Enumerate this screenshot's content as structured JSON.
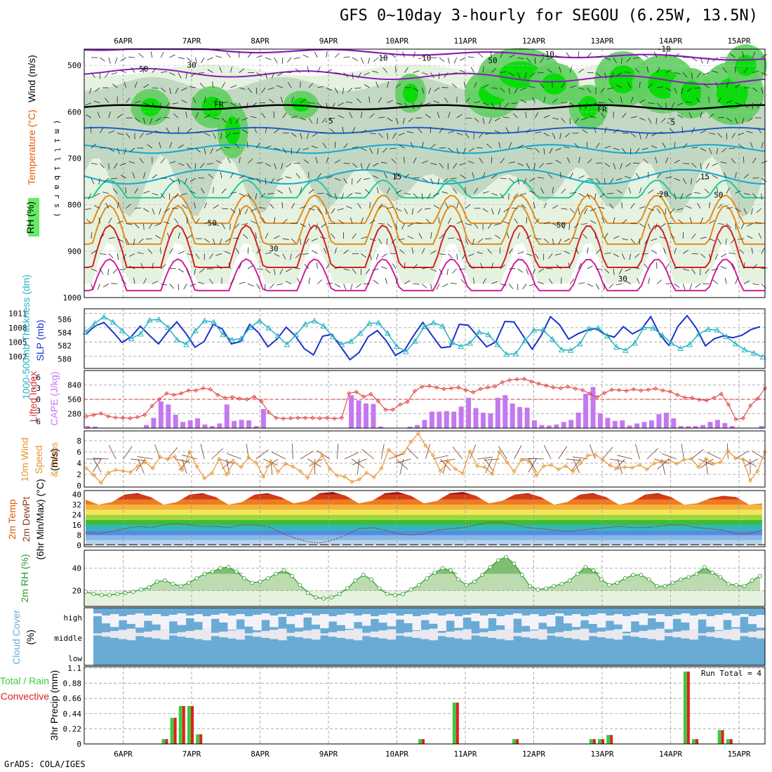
{
  "title": "GFS 0~10day 3-hourly for SEGOU (6.25W, 13.5N)",
  "credit": "GrADS: COLA/IGES",
  "colors": {
    "rh_green": "#00dd00",
    "rh_light": "#e6f2e0",
    "rh_mid": "#bcd4bc",
    "isotherm_cold": "#8c1cbc",
    "isotherm_freeze": "#000000",
    "isotherm_cool": "#1d5fcc",
    "isotherm_mild": "#14a8d4",
    "isotherm_warm": "#1ec8a0",
    "isotherm_hot": "#e08a1e",
    "isotherm_veryhot": "#d42020",
    "slp": "#1a33cc",
    "thickness": "#26b2c4",
    "lifted": "#e03030",
    "cape": "#c478f0",
    "wind10": "#e8932a",
    "rh2m": "#2e9a2e",
    "cloud": "#6aabd6",
    "rain": "#3ec93e",
    "convective": "#e02020"
  },
  "chart_data": [
    {
      "type": "heatmap",
      "panel": "upper-air cross-section",
      "ylabel_parts": [
        "RH (%)",
        "Temperature (°C)",
        "Wind (m/s)"
      ],
      "ylabel_units": "( m i l l i b a r s )",
      "y_ticks": [
        "500",
        "600",
        "700",
        "800",
        "900",
        "1000"
      ],
      "x_ticks_top": [
        "6APR",
        "7APR",
        "8APR",
        "9APR",
        "10APR",
        "11APR",
        "12APR",
        "13APR",
        "14APR",
        "15APR"
      ],
      "isotherm_labels": [
        "-10",
        "FR",
        "FR",
        "-5",
        "-5",
        "-10",
        "-10",
        "15",
        "15",
        "20",
        "30",
        "30"
      ],
      "rh_contour_labels": [
        "50",
        "30",
        "10",
        "50",
        "50",
        "50",
        "50"
      ],
      "isotherms_levels": [
        -10,
        0,
        -5,
        10,
        15,
        20,
        25,
        30,
        35
      ]
    },
    {
      "type": "line",
      "panel": "sea level pressure and thickness",
      "ylabel_left": "1000-500mb Thickness (dm)",
      "ylabel_right": "SLP (mb)",
      "y_ticks_left": [
        "586",
        "584",
        "582",
        "580"
      ],
      "y_ticks_right": [
        "1011",
        "1008",
        "1005",
        "1002"
      ],
      "series": [
        {
          "name": "SLP (mb)",
          "values": [
            1006.6,
            1008.3,
            1009.1,
            1007.1,
            1004.9,
            1006.1,
            1008.3,
            1006.4,
            1004.6,
            1007.1,
            1009.2,
            1006.8,
            1003.9,
            1005.1,
            1008.7,
            1007.7,
            1004.6,
            1005.1,
            1008.7,
            1006.9,
            1004.0,
            1005.6,
            1008.1,
            1006.3,
            1003.6,
            1002.3,
            1006.2,
            1006.6,
            1004.0,
            1001.3,
            1002.8,
            1006.1,
            1007.4,
            1005.2,
            1002.2,
            1003.3,
            1006.4,
            1009.1,
            1006.4,
            1003.8,
            1004.0,
            1008.7,
            1008.5,
            1006.2,
            1004.0,
            1005.0,
            1009.3,
            1009.2,
            1006.3,
            1003.5,
            1006.4,
            1010.3,
            1008.6,
            1005.6,
            1006.7,
            1007.5,
            1007.8,
            1006.6,
            1006.0,
            1008.2,
            1006.7,
            1007.7,
            1010.3,
            1006.6,
            1004.3,
            1008.3,
            1010.5,
            1007.9,
            1004.2,
            1005.7,
            1006.3,
            1005.9,
            1006.4,
            1007.6,
            1008.2
          ]
        },
        {
          "name": "1000-500mb Thickness (dm)",
          "values": [
            584.1,
            585.4,
            586.4,
            585.6,
            584.3,
            583.1,
            583.8,
            585.9,
            586.0,
            584.8,
            582.9,
            582.2,
            584.3,
            585.8,
            585.6,
            583.7,
            582.9,
            583.1,
            584.8,
            585.8,
            584.7,
            583.5,
            582.2,
            583.7,
            585.3,
            585.8,
            585.0,
            583.4,
            582.2,
            582.7,
            583.9,
            585.4,
            585.5,
            583.9,
            581.9,
            581.1,
            582.7,
            584.9,
            585.5,
            585.0,
            582.5,
            581.9,
            582.4,
            584.1,
            583.7,
            582.2,
            580.7,
            580.8,
            582.8,
            584.4,
            584.4,
            583.0,
            581.4,
            581.3,
            582.3,
            584.6,
            584.7,
            583.5,
            581.8,
            581.3,
            582.4,
            584.8,
            584.7,
            583.6,
            582.4,
            581.6,
            582.2,
            583.8,
            584.5,
            584.4,
            583.4,
            582.3,
            581.4,
            580.9,
            580.3
          ]
        }
      ]
    },
    {
      "type": "bar",
      "panel": "stability",
      "ylabel_left": "Lifted Index",
      "ylabel_right": "CAPE (J/kg)",
      "y_ticks_left": [
        "-6",
        "-3",
        "0",
        "3",
        "6"
      ],
      "y_ticks_right": [
        "840",
        "560",
        "280"
      ],
      "series": [
        {
          "name": "CAPE (J/kg)",
          "values": [
            40,
            30,
            0,
            0,
            0,
            0,
            0,
            0,
            60,
            200,
            520,
            460,
            260,
            120,
            150,
            190,
            70,
            40,
            90,
            460,
            140,
            160,
            150,
            40,
            370,
            0,
            0,
            0,
            0,
            0,
            0,
            0,
            0,
            0,
            0,
            0,
            640,
            540,
            480,
            470,
            30,
            0,
            0,
            0,
            30,
            60,
            160,
            320,
            320,
            330,
            320,
            420,
            590,
            390,
            300,
            290,
            590,
            640,
            480,
            410,
            400,
            150,
            60,
            50,
            70,
            120,
            160,
            300,
            670,
            800,
            290,
            200,
            140,
            150,
            50,
            90,
            120,
            150,
            270,
            300,
            190,
            40,
            35,
            40,
            60,
            120,
            160,
            100,
            40,
            0,
            0,
            0,
            40
          ]
        },
        {
          "name": "Lifted Index",
          "values": [
            4.6,
            4.2,
            3.8,
            4.6,
            4.9,
            5.0,
            5.1,
            4.8,
            4.2,
            1.8,
            0.0,
            -1.6,
            -1.2,
            -1.6,
            -2.4,
            -2.4,
            -3.0,
            -2.7,
            -1.2,
            -0.4,
            -0.6,
            -0.2,
            0.0,
            -0.7,
            0.6,
            3.5,
            5.0,
            5.2,
            5.1,
            5.0,
            5.0,
            5.0,
            5.1,
            5.0,
            5.2,
            5.0,
            -1.6,
            -2.0,
            -0.7,
            -1.4,
            0.5,
            2.8,
            2.8,
            1.4,
            0.7,
            -2.2,
            -3.4,
            -3.6,
            -3.2,
            -2.8,
            -3.0,
            -3.2,
            -2.5,
            -1.9,
            -2.8,
            -3.2,
            -3.5,
            -4.6,
            -5.2,
            -5.4,
            -5.5,
            -4.8,
            -4.2,
            -3.7,
            -3.2,
            -3.0,
            -3.4,
            -2.9,
            -2.5,
            -1.5,
            -0.6,
            -1.7,
            -2.6,
            -2.5,
            -2.3,
            -2.7,
            -2.4,
            -2.6,
            -2.9,
            -2.4,
            -2.1,
            -1.2,
            -0.5,
            -0.4,
            0.1,
            0.3,
            -0.4,
            -1.5,
            1.4,
            5.4,
            5.1,
            1.7,
            -0.2,
            -3.0
          ]
        }
      ]
    },
    {
      "type": "line",
      "panel": "10m wind",
      "ylabel": "10m Wind Speed & Barbs (m/s)",
      "y_ticks": [
        "8",
        "6",
        "4",
        "2",
        "0"
      ],
      "series": [
        {
          "name": "10m Wind Speed (m/s)",
          "values": [
            3.1,
            1.9,
            0.5,
            2.3,
            2.8,
            2.6,
            2.4,
            3.5,
            4.2,
            3.1,
            5.1,
            4.7,
            5.2,
            2.8,
            6.0,
            3.4,
            1.3,
            2.2,
            4.8,
            2.0,
            4.2,
            3.3,
            5.0,
            4.1,
            1.6,
            4.2,
            2.5,
            3.9,
            3.4,
            2.6,
            1.4,
            3.9,
            5.4,
            3.0,
            1.8,
            1.6,
            0.7,
            1.1,
            2.3,
            1.5,
            3.1,
            6.4,
            5.3,
            5.8,
            7.8,
            9.3,
            7.1,
            5.4,
            2.6,
            4.3,
            3.0,
            2.2,
            6.1,
            3.5,
            3.3,
            2.1,
            6.0,
            4.2,
            2.5,
            4.6,
            4.4,
            1.8,
            3.5,
            3.7,
            2.9,
            3.5,
            2.5,
            4.0,
            5.4,
            5.5,
            4.6,
            3.6,
            3.1,
            3.3,
            3.2,
            3.7,
            2.9,
            4.0,
            4.3,
            4.6,
            3.9,
            4.6,
            4.8,
            3.3,
            4.8,
            3.9,
            4.2,
            6.2,
            4.9,
            4.7,
            0.9,
            2.6,
            6.0
          ]
        }
      ]
    },
    {
      "type": "area",
      "panel": "2m temperature",
      "ylabel_parts": [
        "2m Temp",
        "2m DewPt",
        "(6hr Min/Max) (°C)"
      ],
      "y_ticks": [
        "40",
        "32",
        "24",
        "16",
        "8",
        "0"
      ],
      "series": [
        {
          "name": "2m Temp (°C)",
          "values": [
            36,
            32,
            34,
            40,
            41,
            38,
            32,
            34,
            40,
            41,
            38,
            32,
            34,
            40,
            41,
            38,
            33,
            35,
            41,
            42,
            39,
            33,
            35,
            41,
            42,
            39,
            33,
            35,
            41,
            42,
            39,
            33,
            35,
            40,
            41,
            38,
            32,
            34,
            40,
            41,
            38,
            32,
            34,
            40,
            41,
            38,
            32,
            33,
            37,
            39,
            38,
            32,
            33
          ]
        },
        {
          "name": "2m DewPt (°C)",
          "values": [
            10,
            9,
            11,
            13,
            15,
            14,
            16,
            17,
            16,
            15,
            15,
            14,
            16,
            16,
            15,
            10,
            6,
            3,
            2,
            4,
            8,
            13,
            14,
            12,
            9,
            8,
            9,
            12,
            13,
            14,
            16,
            18,
            18,
            16,
            14,
            13,
            12,
            11,
            12,
            13,
            14,
            15,
            14,
            14,
            15,
            16,
            16,
            14,
            13,
            12,
            9,
            9,
            12
          ]
        }
      ]
    },
    {
      "type": "line",
      "panel": "2m relative humidity",
      "ylabel": "2m RH (%)",
      "y_ticks": [
        "40",
        "20"
      ],
      "series": [
        {
          "name": "2m RH (%)",
          "values": [
            19,
            17,
            16,
            16,
            17,
            18,
            19,
            21,
            23,
            28,
            29,
            26,
            24,
            27,
            31,
            35,
            37,
            40,
            41,
            37,
            31,
            27,
            28,
            31,
            35,
            38,
            33,
            25,
            18,
            14,
            13,
            14,
            17,
            22,
            29,
            34,
            30,
            22,
            17,
            16,
            17,
            21,
            25,
            31,
            36,
            40,
            38,
            30,
            25,
            28,
            34,
            41,
            47,
            50,
            44,
            34,
            24,
            21,
            22,
            24,
            26,
            29,
            35,
            41,
            38,
            30,
            25,
            27,
            31,
            34,
            34,
            30,
            24,
            24,
            27,
            30,
            32,
            35,
            41,
            36,
            32,
            26,
            25,
            24,
            29,
            33
          ]
        }
      ]
    },
    {
      "type": "area",
      "panel": "cloud cover",
      "ylabel": "Cloud Cover (%)",
      "y_ticks": [
        "high",
        "middle",
        "low"
      ]
    },
    {
      "type": "bar",
      "panel": "precipitation",
      "ylabel": "3hr Precip (mm)",
      "ylabel_left": [
        "Total / Rain",
        "Convective"
      ],
      "y_ticks": [
        "1.1",
        "0.88",
        "0.66",
        "0.44",
        "0.22",
        "0"
      ],
      "x_ticks": [
        "6APR",
        "7APR",
        "8APR",
        "9APR",
        "10APR",
        "11APR",
        "12APR",
        "13APR",
        "14APR",
        "15APR"
      ],
      "annotation": "Run Total = 4",
      "categories": [
        "6APR 15Z",
        "6APR 18Z",
        "6APR 21Z",
        "7APR 00Z",
        "7APR 03Z",
        "7APR 06Z",
        "9APR 12Z",
        "10APR 09Z",
        "10APR 21Z",
        "11APR 18Z",
        "12APR 21Z",
        "13APR 00Z",
        "13APR 03Z",
        "13APR 06Z",
        "13APR 12Z",
        "13APR 15Z",
        "14APR 06Z",
        "14APR 09Z",
        "14APR 18Z",
        "14APR 21Z"
      ],
      "series": [
        {
          "name": "Total / Rain",
          "values": [
            0.07,
            0.38,
            0.55,
            0.55,
            0.14,
            0.0,
            0.0,
            0.07,
            0.6,
            0.07,
            0.07,
            0.07,
            0.13,
            0.0,
            0.0,
            0.0,
            1.05,
            0.07,
            0.2,
            0.07
          ]
        },
        {
          "name": "Convective",
          "values": [
            0.07,
            0.38,
            0.55,
            0.55,
            0.14,
            0.0,
            0.0,
            0.07,
            0.6,
            0.07,
            0.07,
            0.07,
            0.13,
            0.0,
            0.0,
            0.0,
            1.05,
            0.07,
            0.2,
            0.07
          ]
        }
      ]
    }
  ]
}
